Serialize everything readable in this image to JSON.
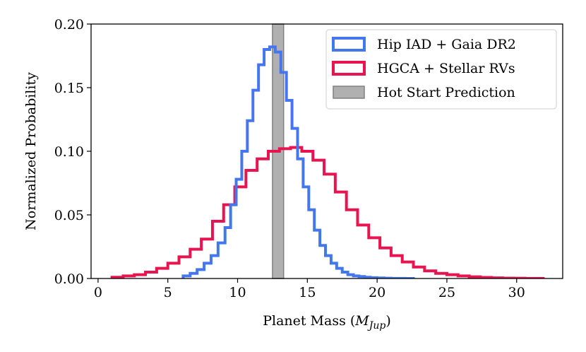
{
  "chart_data": {
    "type": "histogram",
    "title": "",
    "xlabel_text": "Planet Mass (",
    "xlabel_math": "M",
    "xlabel_sub": "Jup",
    "xlabel_close": ")",
    "ylabel": "Normalized Probability",
    "xlim": [
      -0.5,
      33.3
    ],
    "ylim": [
      0.0,
      0.2
    ],
    "xticks": [
      0,
      5,
      10,
      15,
      20,
      25,
      30
    ],
    "xtick_labels": [
      "0",
      "5",
      "10",
      "15",
      "20",
      "25",
      "30"
    ],
    "yticks": [
      0.0,
      0.05,
      0.1,
      0.15,
      0.2
    ],
    "ytick_labels": [
      "0.00",
      "0.05",
      "0.10",
      "0.15",
      "0.20"
    ],
    "legend_position": "top-right",
    "band": {
      "name": "Hot Start Prediction",
      "x_min": 12.5,
      "x_max": 13.3,
      "color": "#b0b0b0",
      "edge_color": "#808080"
    },
    "series": [
      {
        "name": "Hip IAD + Gaia DR2",
        "color": "#4477ee",
        "bin_edges": [
          6.1,
          6.6,
          7.1,
          7.6,
          8.1,
          8.6,
          9.1,
          9.5,
          9.9,
          10.3,
          10.7,
          11.1,
          11.5,
          11.9,
          12.3,
          12.7,
          13.1,
          13.5,
          13.9,
          14.3,
          14.7,
          15.1,
          15.5,
          15.9,
          16.3,
          16.7,
          17.1,
          17.5,
          17.9,
          18.3,
          18.7,
          19.1,
          19.5,
          20.0,
          20.5,
          21.0,
          21.5,
          22.0,
          22.7
        ],
        "values": [
          0.002,
          0.004,
          0.007,
          0.012,
          0.018,
          0.028,
          0.04,
          0.058,
          0.078,
          0.1,
          0.124,
          0.148,
          0.168,
          0.18,
          0.182,
          0.178,
          0.162,
          0.14,
          0.118,
          0.094,
          0.072,
          0.054,
          0.038,
          0.026,
          0.018,
          0.012,
          0.008,
          0.005,
          0.003,
          0.002,
          0.0015,
          0.001,
          0.0006,
          0.0004,
          0.0002,
          0.0001,
          5e-05,
          0.0
        ]
      },
      {
        "name": "HGCA + Stellar RVs",
        "color": "#e8144f",
        "bin_edges": [
          1.0,
          1.8,
          2.6,
          3.4,
          4.2,
          5.0,
          5.8,
          6.6,
          7.4,
          8.2,
          9.0,
          9.8,
          10.6,
          11.4,
          12.2,
          13.0,
          13.8,
          14.6,
          15.4,
          16.2,
          17.0,
          17.8,
          18.6,
          19.4,
          20.2,
          21.0,
          21.8,
          22.6,
          23.4,
          24.2,
          25.0,
          25.8,
          26.6,
          27.4,
          28.2,
          29.0,
          29.8,
          30.6,
          31.9
        ],
        "values": [
          0.001,
          0.002,
          0.003,
          0.005,
          0.008,
          0.012,
          0.017,
          0.023,
          0.031,
          0.045,
          0.058,
          0.072,
          0.085,
          0.094,
          0.1,
          0.102,
          0.103,
          0.1,
          0.093,
          0.082,
          0.068,
          0.054,
          0.042,
          0.032,
          0.024,
          0.018,
          0.013,
          0.009,
          0.006,
          0.004,
          0.003,
          0.002,
          0.0013,
          0.0008,
          0.0005,
          0.0003,
          0.0002,
          0.0001
        ]
      }
    ]
  }
}
